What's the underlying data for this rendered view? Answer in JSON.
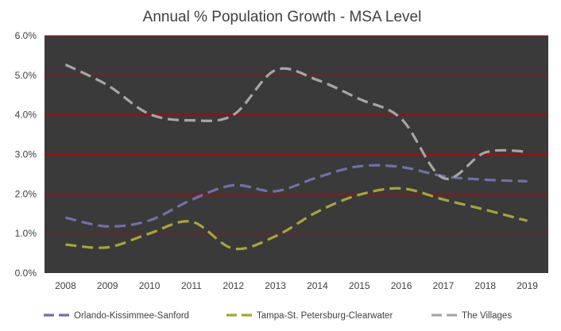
{
  "chart_data": {
    "type": "line",
    "title": "Annual % Population Growth - MSA Level",
    "xlabel": "",
    "ylabel": "",
    "x": [
      "2008",
      "2009",
      "2010",
      "2011",
      "2012",
      "2013",
      "2014",
      "2015",
      "2016",
      "2017",
      "2018",
      "2019"
    ],
    "ylim": [
      0,
      6
    ],
    "yticks": [
      "0.0%",
      "1.0%",
      "2.0%",
      "3.0%",
      "4.0%",
      "5.0%",
      "6.0%"
    ],
    "grid": true,
    "legend_position": "bottom",
    "background_color": "#3a3a3a",
    "grid_color": "#c00000",
    "series": [
      {
        "name": "Orlando-Kissimmee-Sanford",
        "color": "#7070a8",
        "values": [
          1.4,
          1.18,
          1.33,
          1.85,
          2.22,
          2.07,
          2.42,
          2.7,
          2.68,
          2.45,
          2.36,
          2.32
        ]
      },
      {
        "name": "Tampa-St. Petersburg-Clearwater",
        "color": "#a6a636",
        "values": [
          0.72,
          0.65,
          1.0,
          1.3,
          0.62,
          0.93,
          1.55,
          1.98,
          2.14,
          1.86,
          1.6,
          1.32
        ]
      },
      {
        "name": "The Villages",
        "color": "#a6a6a6",
        "values": [
          5.27,
          4.75,
          4.02,
          3.86,
          4.0,
          5.13,
          4.88,
          4.4,
          3.9,
          2.4,
          3.05,
          3.07
        ]
      }
    ]
  }
}
